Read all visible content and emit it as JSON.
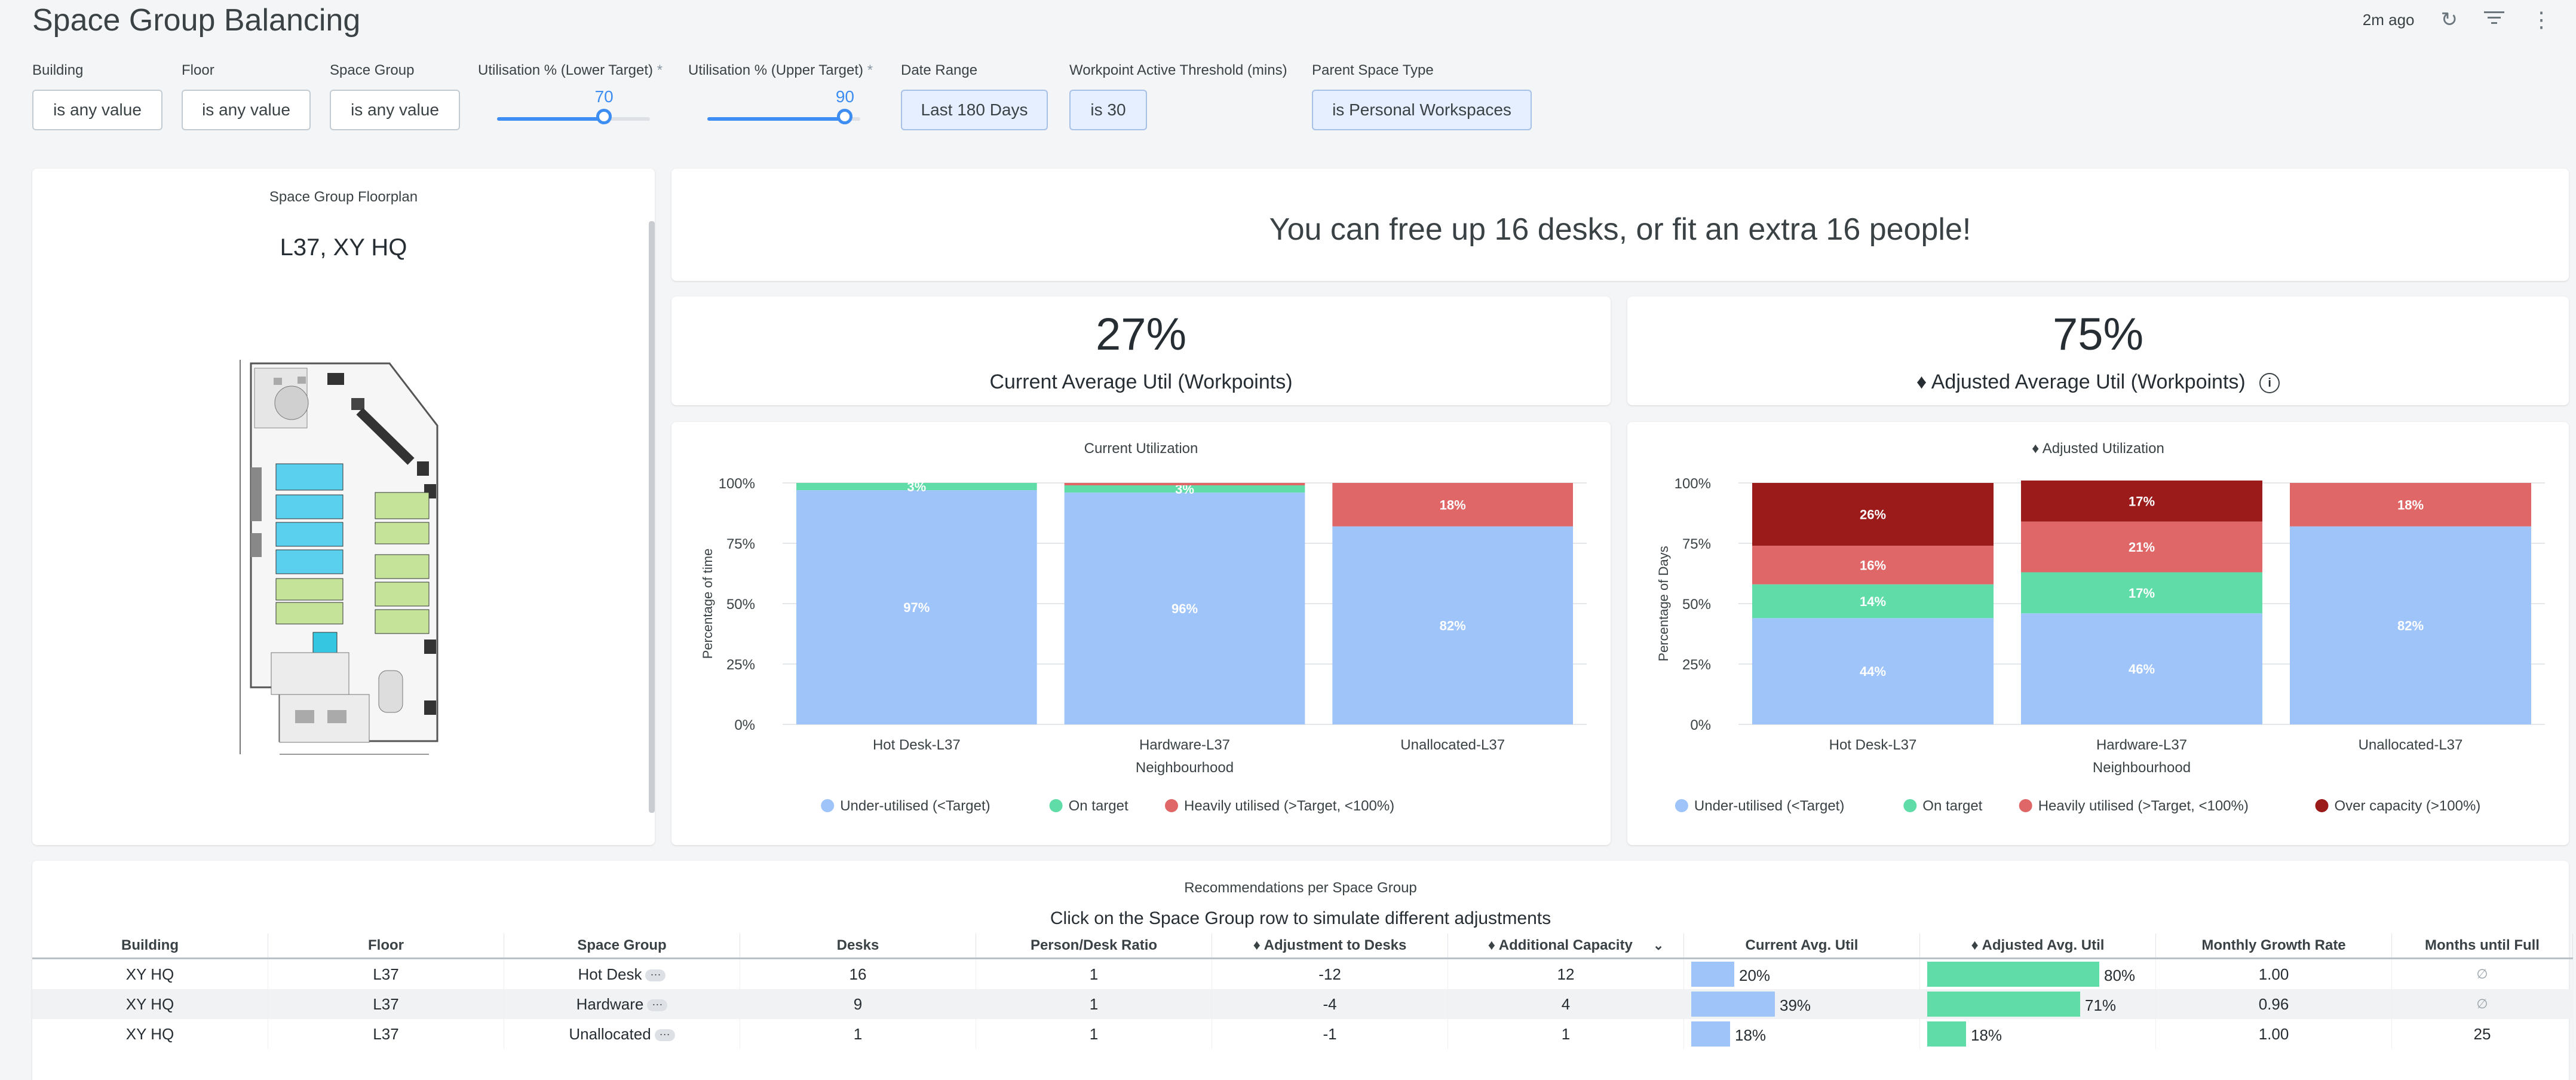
{
  "header": {
    "title": "Space Group Balancing",
    "updated": "2m ago",
    "icons": [
      "refresh-icon",
      "filter-icon",
      "more-vertical-icon"
    ]
  },
  "filters": {
    "building": {
      "label": "Building",
      "value": "is any value"
    },
    "floor": {
      "label": "Floor",
      "value": "is any value"
    },
    "space_group": {
      "label": "Space Group",
      "value": "is any value"
    },
    "util_lower": {
      "label": "Utilisation % (Lower Target)",
      "value": "70",
      "level": 70
    },
    "util_upper": {
      "label": "Utilisation % (Upper Target)",
      "value": "90",
      "level": 90
    },
    "date_range": {
      "label": "Date Range",
      "value": "Last 180 Days"
    },
    "threshold": {
      "label": "Workpoint Active Threshold (mins)",
      "value": "is 30"
    },
    "parent_type": {
      "label": "Parent Space Type",
      "value": "is Personal Workspaces"
    },
    "required_mark": "*"
  },
  "floorplan": {
    "title": "Space Group Floorplan",
    "subtitle": "L37, XY HQ"
  },
  "headline": "You can free up 16 desks, or fit an extra 16 people!",
  "kpis": {
    "current": {
      "value": "27%",
      "label": "Current Average Util (Workpoints)"
    },
    "adjusted": {
      "value": "75%",
      "label": "♦ Adjusted Average Util (Workpoints)"
    }
  },
  "colors": {
    "under": "#9ec4fa",
    "on_target": "#5fdca8",
    "heavy": "#e06767",
    "over": "#9b1a1a",
    "accent": "#3d8df2"
  },
  "chart_data": [
    {
      "type": "bar",
      "stacked": true,
      "title": "Current Utilization",
      "xlabel": "Neighbourhood",
      "ylabel": "Percentage of time",
      "categories": [
        "Hot Desk-L37",
        "Hardware-L37",
        "Unallocated-L37"
      ],
      "yticks": [
        "0%",
        "25%",
        "50%",
        "75%",
        "100%"
      ],
      "ylim": [
        0,
        100
      ],
      "series": [
        {
          "name": "Under-utilised (<Target)",
          "values": [
            97,
            96,
            82
          ],
          "labels": [
            "97%",
            "96%",
            "82%"
          ],
          "color": "#9ec4fa"
        },
        {
          "name": "On target",
          "values": [
            3,
            3,
            0
          ],
          "labels": [
            "3%",
            "3%",
            ""
          ],
          "color": "#5fdca8"
        },
        {
          "name": "Heavily utilised (>Target, <100%)",
          "values": [
            0,
            1,
            18
          ],
          "labels": [
            "",
            "",
            "18%"
          ],
          "color": "#e06767"
        }
      ],
      "grid": true,
      "legend": "bottom"
    },
    {
      "type": "bar",
      "stacked": true,
      "title": "♦ Adjusted Utilization",
      "xlabel": "Neighbourhood",
      "ylabel": "Percentage of Days",
      "categories": [
        "Hot Desk-L37",
        "Hardware-L37",
        "Unallocated-L37"
      ],
      "yticks": [
        "0%",
        "25%",
        "50%",
        "75%",
        "100%"
      ],
      "ylim": [
        0,
        100
      ],
      "series": [
        {
          "name": "Under-utilised (<Target)",
          "values": [
            44,
            46,
            82
          ],
          "labels": [
            "44%",
            "46%",
            "82%"
          ],
          "color": "#9ec4fa"
        },
        {
          "name": "On target",
          "values": [
            14,
            17,
            0
          ],
          "labels": [
            "14%",
            "17%",
            ""
          ],
          "color": "#5fdca8"
        },
        {
          "name": "Heavily utilised (>Target, <100%)",
          "values": [
            16,
            21,
            18
          ],
          "labels": [
            "16%",
            "21%",
            "18%"
          ],
          "color": "#e06767"
        },
        {
          "name": "Over capacity (>100%)",
          "values": [
            26,
            17,
            0
          ],
          "labels": [
            "26%",
            "17%",
            ""
          ],
          "color": "#9b1a1a"
        }
      ],
      "grid": true,
      "legend": "bottom"
    }
  ],
  "table": {
    "title": "Recommendations per Space Group",
    "subtitle": "Click on the Space Group row to simulate different adjustments",
    "columns": [
      "Building",
      "Floor",
      "Space Group",
      "Desks",
      "Person/Desk Ratio",
      "♦ Adjustment to Desks",
      "♦ Additional Capacity",
      "Current Avg. Util",
      "♦ Adjusted Avg. Util",
      "Monthly Growth Rate",
      "Months until Full"
    ],
    "more_label": "···",
    "rows": [
      {
        "building": "XY HQ",
        "floor": "L37",
        "space_group": "Hot Desk",
        "desks": "16",
        "ratio": "1",
        "adjustment": "-12",
        "capacity": "12",
        "current": "20%",
        "current_level": 20,
        "adjusted": "80%",
        "adjusted_level": 80,
        "growth": "1.00",
        "months": "∅"
      },
      {
        "building": "XY HQ",
        "floor": "L37",
        "space_group": "Hardware",
        "desks": "9",
        "ratio": "1",
        "adjustment": "-4",
        "capacity": "4",
        "current": "39%",
        "current_level": 39,
        "adjusted": "71%",
        "adjusted_level": 71,
        "growth": "0.96",
        "months": "∅"
      },
      {
        "building": "XY HQ",
        "floor": "L37",
        "space_group": "Unallocated",
        "desks": "1",
        "ratio": "1",
        "adjustment": "-1",
        "capacity": "1",
        "current": "18%",
        "current_level": 18,
        "adjusted": "18%",
        "adjusted_level": 18,
        "growth": "1.00",
        "months": "25"
      }
    ]
  }
}
